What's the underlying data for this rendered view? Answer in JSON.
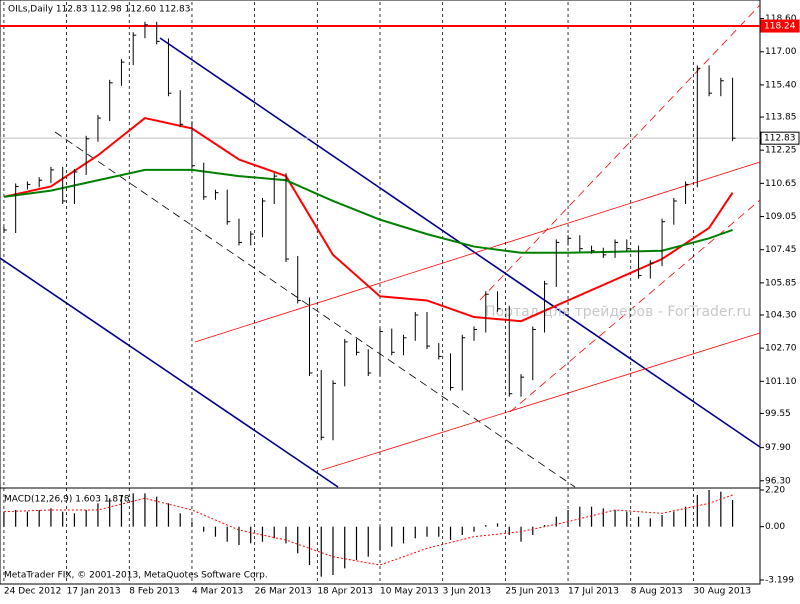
{
  "chart_data": {
    "type": "price",
    "title": "OILs,Daily  112.83 112.98 112.60 112.83",
    "watermark": "Портал для трейдеров - ForTrader.ru",
    "copyright": "MetaTrader FIX, © 2001-2013, MetaQuotes Software Corp.",
    "xlim": [
      -1,
      193
    ],
    "xticks": [
      {
        "value": 0,
        "label": "24 Dec 2012"
      },
      {
        "value": 16,
        "label": "17 Jan 2013"
      },
      {
        "value": 32,
        "label": "8 Feb 2013"
      },
      {
        "value": 48,
        "label": "4 Mar 2013"
      },
      {
        "value": 64,
        "label": "26 Mar 2013"
      },
      {
        "value": 80,
        "label": "18 Apr 2013"
      },
      {
        "value": 96,
        "label": "10 May 2013"
      },
      {
        "value": 112,
        "label": "3 Jun 2013"
      },
      {
        "value": 128,
        "label": "25 Jun 2013"
      },
      {
        "value": 144,
        "label": "17 Jul 2013"
      },
      {
        "value": 160,
        "label": "8 Aug 2013"
      },
      {
        "value": 176,
        "label": "30 Aug 2013"
      }
    ],
    "ylim": [
      96.0,
      119.4
    ],
    "yticks": [
      {
        "value": 118.6,
        "label": "118.60"
      },
      {
        "value": 117.0,
        "label": "117.00"
      },
      {
        "value": 115.4,
        "label": "115.40"
      },
      {
        "value": 113.85,
        "label": "113.85"
      },
      {
        "value": 112.25,
        "label": "112.25"
      },
      {
        "value": 110.65,
        "label": "110.65"
      },
      {
        "value": 109.05,
        "label": "109.05"
      },
      {
        "value": 107.45,
        "label": "107.45"
      },
      {
        "value": 105.85,
        "label": "105.85"
      },
      {
        "value": 104.3,
        "label": "104.30"
      },
      {
        "value": 102.7,
        "label": "102.70"
      },
      {
        "value": 101.1,
        "label": "101.10"
      },
      {
        "value": 99.55,
        "label": "99.55"
      },
      {
        "value": 97.9,
        "label": "97.90"
      },
      {
        "value": 96.3,
        "label": "96.30"
      }
    ],
    "price_levels": [
      {
        "value": 118.24,
        "color": "#ff0000"
      },
      {
        "value": 112.83,
        "color": "#c0c0c0"
      }
    ],
    "price": {
      "name": "OILs",
      "color": "#000000",
      "x": [
        0,
        3,
        6,
        9,
        12,
        15,
        18,
        21,
        24,
        27,
        30,
        33,
        36,
        39,
        42,
        45,
        48,
        51,
        54,
        57,
        60,
        63,
        66,
        69,
        72,
        75,
        78,
        81,
        84,
        87,
        90,
        93,
        96,
        99,
        102,
        105,
        108,
        111,
        114,
        117,
        120,
        123,
        126,
        129,
        132,
        135,
        138,
        141,
        144,
        147,
        150,
        153,
        156,
        159,
        162,
        165,
        168,
        171,
        174,
        177,
        180,
        183,
        186
      ],
      "values": [
        108.4,
        110.5,
        110.6,
        110.8,
        111.3,
        109.8,
        111.2,
        112.8,
        113.8,
        115.5,
        116.5,
        117.8,
        118.3,
        117.5,
        115.0,
        113.5,
        111.5,
        110.0,
        110.2,
        108.8,
        107.8,
        108.2,
        109.8,
        111.0,
        107.0,
        105.0,
        101.5,
        98.4,
        101.0,
        103.0,
        102.5,
        101.5,
        103.5,
        102.5,
        103.2,
        104.3,
        102.8,
        102.3,
        100.8,
        103.2,
        103.6,
        105.3,
        104.6,
        100.5,
        101.3,
        103.6,
        105.8,
        107.8,
        108.0,
        107.5,
        107.4,
        107.2,
        107.8,
        107.5,
        106.2,
        106.8,
        108.8,
        109.8,
        110.6,
        116.2,
        115.0,
        115.6,
        112.83
      ]
    },
    "series": [
      {
        "color": "#ff0000",
        "x": [
          0,
          12,
          24,
          36,
          48,
          60,
          72,
          84,
          96,
          108,
          120,
          132,
          144,
          156,
          168,
          180,
          186
        ],
        "values": [
          110.0,
          110.5,
          112.0,
          113.8,
          113.3,
          111.8,
          111.0,
          107.2,
          105.2,
          105.0,
          104.2,
          104.0,
          105.0,
          106.0,
          107.0,
          108.5,
          110.2
        ]
      },
      {
        "color": "#008000",
        "x": [
          0,
          12,
          24,
          36,
          48,
          60,
          72,
          84,
          96,
          108,
          120,
          132,
          144,
          156,
          168,
          180,
          186
        ],
        "values": [
          110.0,
          110.3,
          110.8,
          111.3,
          111.3,
          111.0,
          110.8,
          109.8,
          108.9,
          108.2,
          107.6,
          107.3,
          107.3,
          107.35,
          107.4,
          108.0,
          108.4
        ]
      }
    ],
    "macd": {
      "label": "MACD(12,26,9) 1.603 1.878",
      "ylim": [
        -3.199,
        2.2
      ],
      "yticks": [
        {
          "value": 2.2,
          "label": "2.20"
        },
        {
          "value": 0,
          "label": "0.00"
        },
        {
          "value": -3.199,
          "label": "-3.199"
        }
      ],
      "histogram": {
        "color": "#000000",
        "x": [
          0,
          3,
          6,
          9,
          12,
          15,
          18,
          21,
          24,
          27,
          30,
          33,
          36,
          39,
          42,
          45,
          48,
          51,
          54,
          57,
          60,
          63,
          66,
          69,
          72,
          75,
          78,
          81,
          84,
          87,
          90,
          93,
          96,
          99,
          102,
          105,
          108,
          111,
          114,
          117,
          120,
          123,
          126,
          129,
          132,
          135,
          138,
          141,
          144,
          147,
          150,
          153,
          156,
          159,
          162,
          165,
          168,
          171,
          174,
          177,
          180,
          183,
          186
        ],
        "values": [
          0.9,
          1.0,
          0.9,
          1.0,
          1.1,
          0.9,
          0.8,
          1.0,
          1.4,
          1.7,
          1.9,
          2.0,
          2.0,
          1.8,
          1.4,
          0.8,
          0.3,
          -0.3,
          -0.6,
          -0.9,
          -1.1,
          -1.0,
          -0.9,
          -0.7,
          -1.0,
          -1.6,
          -2.3,
          -3.0,
          -2.9,
          -2.5,
          -2.0,
          -1.8,
          -1.4,
          -1.2,
          -1.0,
          -0.7,
          -0.6,
          -0.6,
          -0.8,
          -0.5,
          -0.3,
          0.1,
          0.2,
          -0.5,
          -0.9,
          -0.5,
          0.1,
          0.6,
          1.0,
          1.2,
          1.2,
          1.1,
          1.0,
          0.9,
          0.6,
          0.5,
          0.7,
          0.9,
          1.2,
          1.9,
          2.2,
          2.1,
          1.6
        ]
      },
      "signal": {
        "color": "#ff0000",
        "x": [
          0,
          12,
          24,
          36,
          48,
          60,
          72,
          84,
          96,
          108,
          120,
          132,
          144,
          156,
          168,
          180,
          186
        ],
        "values": [
          0.9,
          1.0,
          1.0,
          1.7,
          1.0,
          -0.2,
          -0.8,
          -1.8,
          -2.3,
          -1.3,
          -0.6,
          -0.3,
          0.3,
          1.0,
          0.8,
          1.4,
          1.9
        ]
      }
    }
  }
}
